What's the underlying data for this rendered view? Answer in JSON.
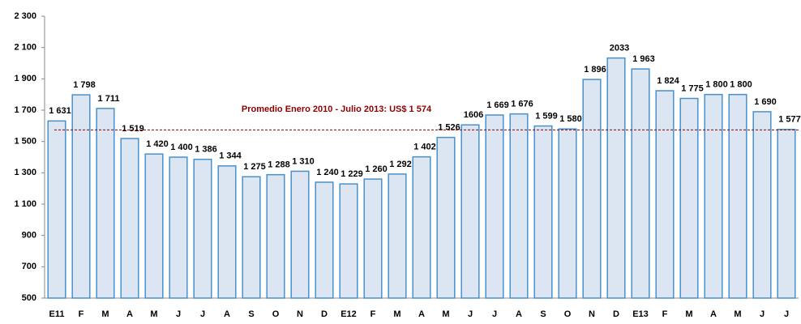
{
  "chart_data": {
    "type": "bar",
    "categories": [
      "E11",
      "F",
      "M",
      "A",
      "M",
      "J",
      "J",
      "A",
      "S",
      "O",
      "N",
      "D",
      "E12",
      "F",
      "M",
      "A",
      "M",
      "J",
      "J",
      "A",
      "S",
      "O",
      "N",
      "D",
      "E13",
      "F",
      "M",
      "A",
      "M",
      "J",
      "J"
    ],
    "values": [
      1631,
      1798,
      1711,
      1519,
      1420,
      1400,
      1386,
      1344,
      1275,
      1288,
      1310,
      1240,
      1229,
      1260,
      1292,
      1402,
      1526,
      1606,
      1669,
      1676,
      1599,
      1580,
      1896,
      2033,
      1963,
      1824,
      1775,
      1800,
      1800,
      1690,
      1577
    ],
    "value_labels": [
      "1 631",
      "1 798",
      "1 711",
      "1 519",
      "1 420",
      "1 400",
      "1 386",
      "1 344",
      "1 275",
      "1 288",
      "1 310",
      "1 240",
      "1 229",
      "1 260",
      "1 292",
      "1 402",
      "1 526",
      "1606",
      "1 669",
      "1 676",
      "1 599",
      "1 580",
      "1 896",
      "2033",
      "1 963",
      "1 824",
      "1 775",
      "1 800",
      "1 800",
      "1 690",
      "1 577"
    ],
    "color": "#dce6f2",
    "edge_color": "#4a90c8",
    "ylim": [
      500,
      2300
    ],
    "yticks": [
      500,
      700,
      900,
      {
        "value": 1100,
        "label": "1 100"
      },
      {
        "value": 1300,
        "label": "1 300"
      },
      {
        "value": 1500,
        "label": "1 500"
      },
      {
        "value": 1700,
        "label": "1 700"
      },
      {
        "value": 1900,
        "label": "1 900"
      },
      {
        "value": 2100,
        "label": "2 100"
      },
      {
        "value": 2300,
        "label": "2 300"
      }
    ],
    "reference_line": {
      "value": 1574,
      "label": "Promedio Enero 2010 - Julio 2013: US$ 1 574",
      "color": "#8b0000"
    }
  }
}
